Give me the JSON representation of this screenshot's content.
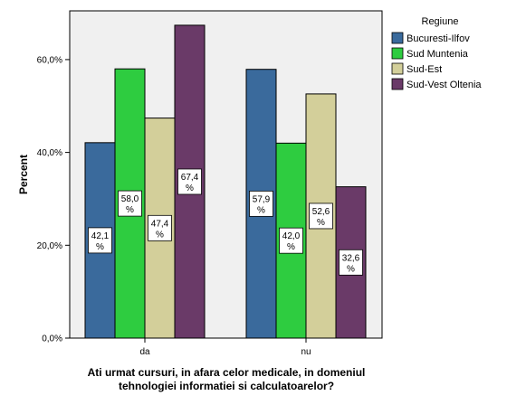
{
  "chart_data": {
    "type": "bar",
    "categories": [
      "da",
      "nu"
    ],
    "series": [
      {
        "name": "Bucuresti-Ilfov",
        "color": "#3a6a9c",
        "values": [
          42.1,
          57.9
        ],
        "labels": [
          "42,1 %",
          "57,9 %"
        ]
      },
      {
        "name": "Sud Muntenia",
        "color": "#2ecc40",
        "values": [
          58.0,
          42.0
        ],
        "labels": [
          "58,0 %",
          "42,0 %"
        ]
      },
      {
        "name": "Sud-Est",
        "color": "#d3cf9a",
        "values": [
          47.4,
          52.6
        ],
        "labels": [
          "47,4 %",
          "52,6 %"
        ]
      },
      {
        "name": "Sud-Vest Oltenia",
        "color": "#6a3a68",
        "values": [
          67.4,
          32.6
        ],
        "labels": [
          "67,4 %",
          "32,6 %"
        ]
      }
    ],
    "ylabel": "Percent",
    "xlabel_lines": [
      "Ati urmat cursuri, in afara celor medicale, in domeniul",
      "tehnologiei informatiei si calculatoarelor?"
    ],
    "ylim": [
      0,
      70.5
    ],
    "yticks": [
      0,
      20,
      40,
      60
    ],
    "ytick_labels": [
      "0,0%",
      "20,0%",
      "40,0%",
      "60,0%"
    ],
    "legend_title": "Regiune",
    "legend_position": "top-right",
    "grid": false,
    "plot_background": "#f0f0f0"
  }
}
